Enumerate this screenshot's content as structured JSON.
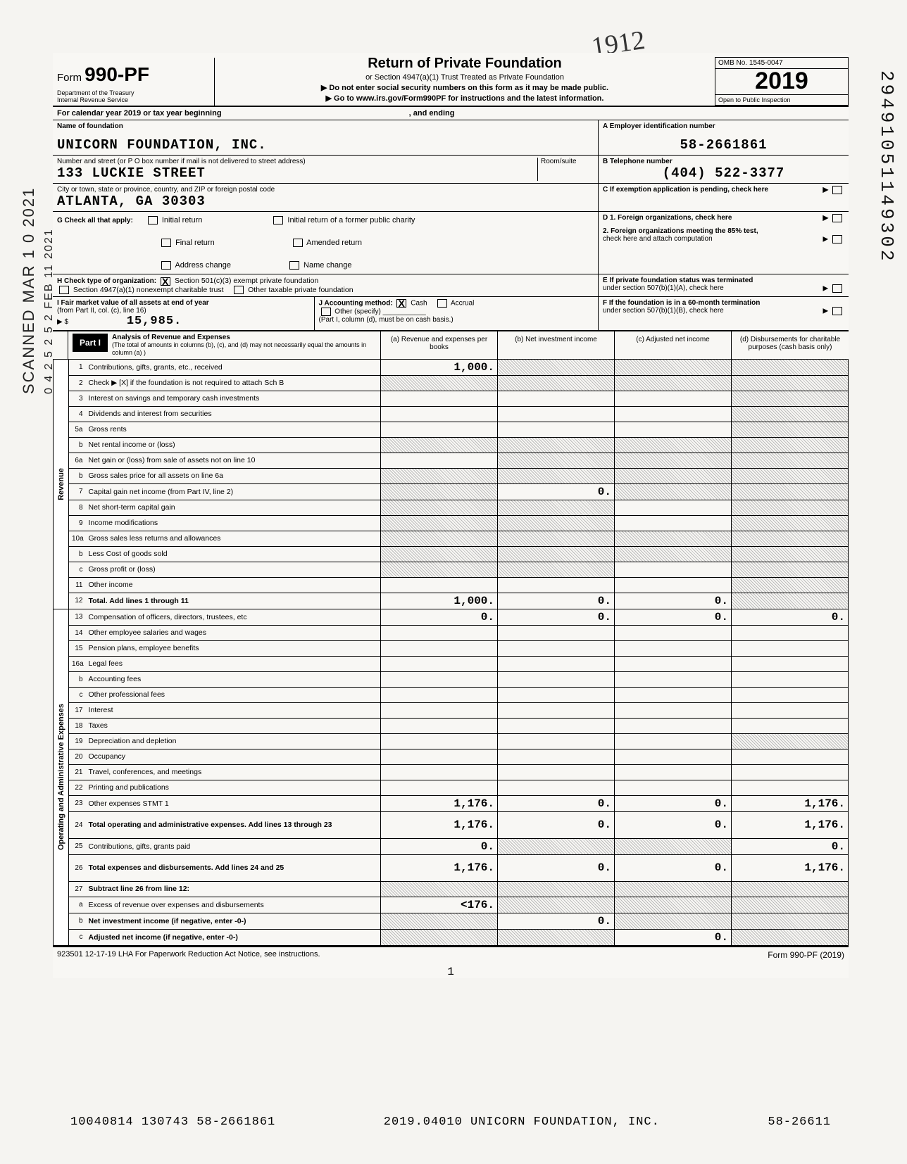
{
  "form": {
    "prefix": "Form",
    "number": "990-PF",
    "dept_line1": "Department of the Treasury",
    "dept_line2": "Internal Revenue Service",
    "title": "Return of Private Foundation",
    "subtitle": "or Section 4947(a)(1) Trust Treated as Private Foundation",
    "warn1": "Do not enter social security numbers on this form as it may be made public.",
    "warn2": "Go to www.irs.gov/Form990PF for instructions and the latest information.",
    "omb": "OMB No. 1545-0047",
    "year": "2019",
    "inspection": "Open to Public Inspection",
    "calendar_line": "For calendar year 2019 or tax year beginning",
    "and_ending": ", and ending"
  },
  "id": {
    "name_label": "Name of foundation",
    "name": "UNICORN FOUNDATION, INC.",
    "addr_label": "Number and street (or P O box number if mail is not delivered to street address)",
    "addr": "133 LUCKIE STREET",
    "room_label": "Room/suite",
    "city_label": "City or town, state or province, country, and ZIP or foreign postal code",
    "city": "ATLANTA, GA   30303",
    "ein_label": "A  Employer identification number",
    "ein": "58-2661861",
    "phone_label": "B  Telephone number",
    "phone": "(404) 522-3377",
    "c_label": "C  If exemption application is pending, check here"
  },
  "g": {
    "label": "G  Check all that apply:",
    "opts": [
      "Initial return",
      "Final return",
      "Address change",
      "Initial return of a former public charity",
      "Amended return",
      "Name change"
    ]
  },
  "d": {
    "d1": "D  1. Foreign organizations, check here",
    "d2a": "2. Foreign organizations meeting the 85% test,",
    "d2b": "check here and attach computation"
  },
  "h": {
    "label": "H  Check type of organization:",
    "opt1": "Section 501(c)(3) exempt private foundation",
    "opt2": "Section 4947(a)(1) nonexempt charitable trust",
    "opt3": "Other taxable private foundation"
  },
  "e": {
    "e1": "E  If private foundation status was terminated",
    "e2": "under section 507(b)(1)(A), check here"
  },
  "i": {
    "label": "I  Fair market value of all assets at end of year",
    "sub": "(from Part II, col. (c), line 16)",
    "arrow": "▶ $",
    "val": "15,985."
  },
  "j": {
    "label": "J  Accounting method:",
    "cash": "Cash",
    "accrual": "Accrual",
    "other": "Other (specify)",
    "note": "(Part I, column (d), must be on cash basis.)"
  },
  "f": {
    "f1": "F  If the foundation is in a 60-month termination",
    "f2": "under section 507(b)(1)(B), check here"
  },
  "part1": {
    "tag": "Part I",
    "title": "Analysis of Revenue and Expenses",
    "note": "(The total of amounts in columns (b), (c), and (d) may not necessarily equal the amounts in column (a) )",
    "col_a": "(a) Revenue and expenses per books",
    "col_b": "(b) Net investment income",
    "col_c": "(c) Adjusted net income",
    "col_d": "(d) Disbursements for charitable purposes (cash basis only)"
  },
  "vtabs": {
    "rev": "Revenue",
    "exp": "Operating and Administrative Expenses"
  },
  "lines": [
    {
      "n": "1",
      "d": "Contributions, gifts, grants, etc., received",
      "a": "1,000.",
      "b": "shade",
      "c": "shade",
      "dd": "shade"
    },
    {
      "n": "2",
      "d": "Check ▶ [X] if the foundation is not required to attach Sch B",
      "a": "shade",
      "b": "shade",
      "c": "shade",
      "dd": "shade"
    },
    {
      "n": "3",
      "d": "Interest on savings and temporary cash investments",
      "a": "",
      "b": "",
      "c": "",
      "dd": "shade"
    },
    {
      "n": "4",
      "d": "Dividends and interest from securities",
      "a": "",
      "b": "",
      "c": "",
      "dd": "shade"
    },
    {
      "n": "5a",
      "d": "Gross rents",
      "a": "",
      "b": "",
      "c": "",
      "dd": "shade"
    },
    {
      "n": "b",
      "d": "Net rental income or (loss)",
      "a": "shade",
      "b": "shade",
      "c": "shade",
      "dd": "shade"
    },
    {
      "n": "6a",
      "d": "Net gain or (loss) from sale of assets not on line 10",
      "a": "",
      "b": "shade",
      "c": "shade",
      "dd": "shade"
    },
    {
      "n": "b",
      "d": "Gross sales price for all assets on line 6a",
      "a": "shade",
      "b": "shade",
      "c": "shade",
      "dd": "shade"
    },
    {
      "n": "7",
      "d": "Capital gain net income (from Part IV, line 2)",
      "a": "shade",
      "b": "0.",
      "c": "shade",
      "dd": "shade"
    },
    {
      "n": "8",
      "d": "Net short-term capital gain",
      "a": "shade",
      "b": "shade",
      "c": "",
      "dd": "shade"
    },
    {
      "n": "9",
      "d": "Income modifications",
      "a": "shade",
      "b": "shade",
      "c": "",
      "dd": "shade"
    },
    {
      "n": "10a",
      "d": "Gross sales less returns and allowances",
      "a": "shade",
      "b": "shade",
      "c": "shade",
      "dd": "shade"
    },
    {
      "n": "b",
      "d": "Less Cost of goods sold",
      "a": "shade",
      "b": "shade",
      "c": "shade",
      "dd": "shade"
    },
    {
      "n": "c",
      "d": "Gross profit or (loss)",
      "a": "shade",
      "b": "shade",
      "c": "",
      "dd": "shade"
    },
    {
      "n": "11",
      "d": "Other income",
      "a": "",
      "b": "",
      "c": "",
      "dd": "shade"
    },
    {
      "n": "12",
      "d": "Total. Add lines 1 through 11",
      "a": "1,000.",
      "b": "0.",
      "c": "0.",
      "dd": "shade",
      "bold": true
    },
    {
      "n": "13",
      "d": "Compensation of officers, directors, trustees, etc",
      "a": "0.",
      "b": "0.",
      "c": "0.",
      "dd": "0."
    },
    {
      "n": "14",
      "d": "Other employee salaries and wages",
      "a": "",
      "b": "",
      "c": "",
      "dd": ""
    },
    {
      "n": "15",
      "d": "Pension plans, employee benefits",
      "a": "",
      "b": "",
      "c": "",
      "dd": ""
    },
    {
      "n": "16a",
      "d": "Legal fees",
      "a": "",
      "b": "",
      "c": "",
      "dd": ""
    },
    {
      "n": "b",
      "d": "Accounting fees",
      "a": "",
      "b": "",
      "c": "",
      "dd": ""
    },
    {
      "n": "c",
      "d": "Other professional fees",
      "a": "",
      "b": "",
      "c": "",
      "dd": ""
    },
    {
      "n": "17",
      "d": "Interest",
      "a": "",
      "b": "",
      "c": "",
      "dd": ""
    },
    {
      "n": "18",
      "d": "Taxes",
      "a": "",
      "b": "",
      "c": "",
      "dd": ""
    },
    {
      "n": "19",
      "d": "Depreciation and depletion",
      "a": "",
      "b": "",
      "c": "",
      "dd": "shade"
    },
    {
      "n": "20",
      "d": "Occupancy",
      "a": "",
      "b": "",
      "c": "",
      "dd": ""
    },
    {
      "n": "21",
      "d": "Travel, conferences, and meetings",
      "a": "",
      "b": "",
      "c": "",
      "dd": ""
    },
    {
      "n": "22",
      "d": "Printing and publications",
      "a": "",
      "b": "",
      "c": "",
      "dd": ""
    },
    {
      "n": "23",
      "d": "Other expenses                  STMT 1",
      "a": "1,176.",
      "b": "0.",
      "c": "0.",
      "dd": "1,176."
    },
    {
      "n": "24",
      "d": "Total operating and administrative expenses. Add lines 13 through 23",
      "a": "1,176.",
      "b": "0.",
      "c": "0.",
      "dd": "1,176.",
      "bold": true,
      "tall": true
    },
    {
      "n": "25",
      "d": "Contributions, gifts, grants paid",
      "a": "0.",
      "b": "shade",
      "c": "shade",
      "dd": "0."
    },
    {
      "n": "26",
      "d": "Total expenses and disbursements. Add lines 24 and 25",
      "a": "1,176.",
      "b": "0.",
      "c": "0.",
      "dd": "1,176.",
      "bold": true,
      "tall": true
    },
    {
      "n": "27",
      "d": "Subtract line 26 from line 12:",
      "a": "shade",
      "b": "shade",
      "c": "shade",
      "dd": "shade",
      "bold": true
    },
    {
      "n": "a",
      "d": "Excess of revenue over expenses and disbursements",
      "a": "<176.",
      "b": "shade",
      "c": "shade",
      "dd": "shade"
    },
    {
      "n": "b",
      "d": "Net investment income (if negative, enter -0-)",
      "a": "shade",
      "b": "0.",
      "c": "shade",
      "dd": "shade",
      "bold": true
    },
    {
      "n": "c",
      "d": "Adjusted net income (if negative, enter -0-)",
      "a": "shade",
      "b": "shade",
      "c": "0.",
      "dd": "shade",
      "bold": true
    }
  ],
  "footer": {
    "left": "923501 12-17-19   LHA  For Paperwork Reduction Act Notice, see instructions.",
    "right": "Form 990-PF (2019)",
    "page_num": "1"
  },
  "bottom": {
    "left": "10040814 130743 58-2661861",
    "mid": "2019.04010 UNICORN FOUNDATION, INC.",
    "right": "58-26611"
  },
  "marginalia": {
    "stamp": "SCANNED MAR 1 0 2021",
    "side_num": "0 4 2 5 2 5 2   FEB 11 2021",
    "dln": "29491051149302",
    "scribble": "1912"
  }
}
